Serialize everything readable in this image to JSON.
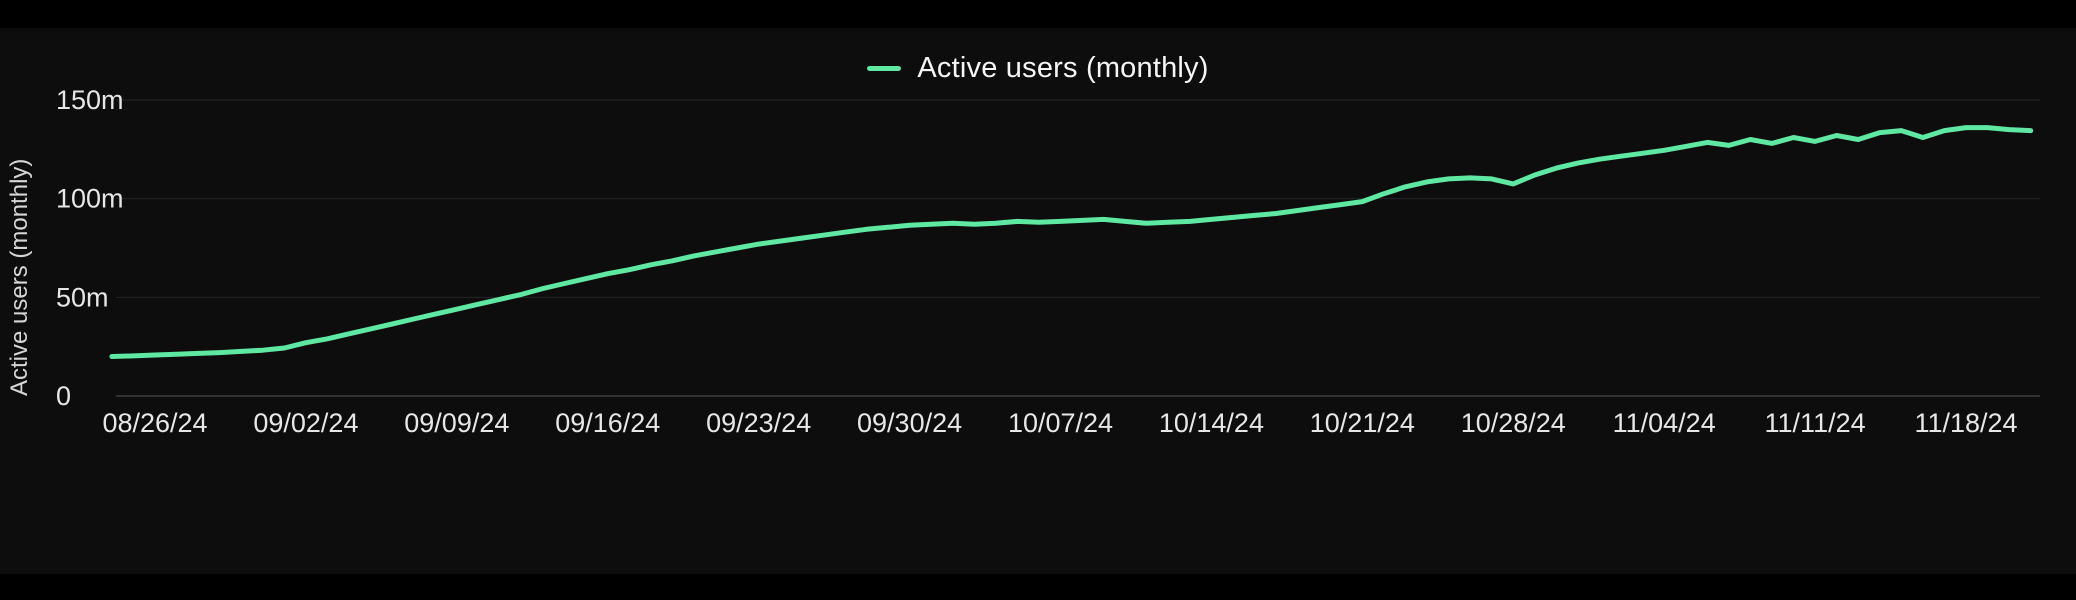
{
  "chart_data": {
    "type": "line",
    "legend": "Active users (monthly)",
    "ylabel": "Active users (monthly)",
    "unit": "millions",
    "background": "#0d0d0d",
    "grid_color": "#262626",
    "axis_color": "#3f3f3f",
    "text_color": "#e7e7e7",
    "grid": true,
    "legend_position": "top-center",
    "ylim": [
      0,
      150
    ],
    "x_tick_labels": [
      "08/26/24",
      "09/02/24",
      "09/09/24",
      "09/16/24",
      "09/23/24",
      "09/30/24",
      "10/07/24",
      "10/14/24",
      "10/21/24",
      "10/28/24",
      "11/04/24",
      "11/11/24",
      "11/18/24"
    ],
    "y_ticks": [
      {
        "label": "0",
        "value": 0
      },
      {
        "label": "50m",
        "value": 50
      },
      {
        "label": "100m",
        "value": 100
      },
      {
        "label": "150m",
        "value": 150
      }
    ],
    "series": [
      {
        "name": "Active users (monthly)",
        "color": "#5ee8a2",
        "start": "08/24/24",
        "cadence": "daily",
        "values": [
          20.0,
          20.3,
          20.8,
          21.2,
          21.6,
          22.0,
          22.6,
          23.2,
          24.3,
          27.0,
          29.0,
          31.5,
          34.0,
          36.5,
          39.0,
          41.5,
          44.0,
          46.5,
          49.0,
          51.5,
          54.5,
          57.0,
          59.5,
          62.0,
          64.0,
          66.5,
          68.5,
          71.0,
          73.0,
          75.0,
          77.0,
          78.5,
          80.0,
          81.5,
          83.0,
          84.5,
          85.5,
          86.5,
          87.0,
          87.5,
          87.0,
          87.5,
          88.5,
          88.0,
          88.5,
          89.0,
          89.5,
          88.5,
          87.5,
          88.0,
          88.5,
          89.5,
          90.5,
          91.5,
          92.5,
          94.0,
          95.5,
          97.0,
          98.5,
          102.5,
          106.0,
          108.5,
          110.0,
          110.5,
          110.0,
          107.5,
          112.0,
          115.5,
          118.0,
          120.0,
          121.5,
          123.0,
          124.5,
          126.5,
          128.5,
          127.0,
          130.0,
          128.0,
          131.0,
          129.0,
          132.0,
          130.0,
          133.5,
          134.5,
          131.0,
          134.5,
          136.0,
          136.0,
          135.0,
          134.5
        ]
      }
    ]
  }
}
